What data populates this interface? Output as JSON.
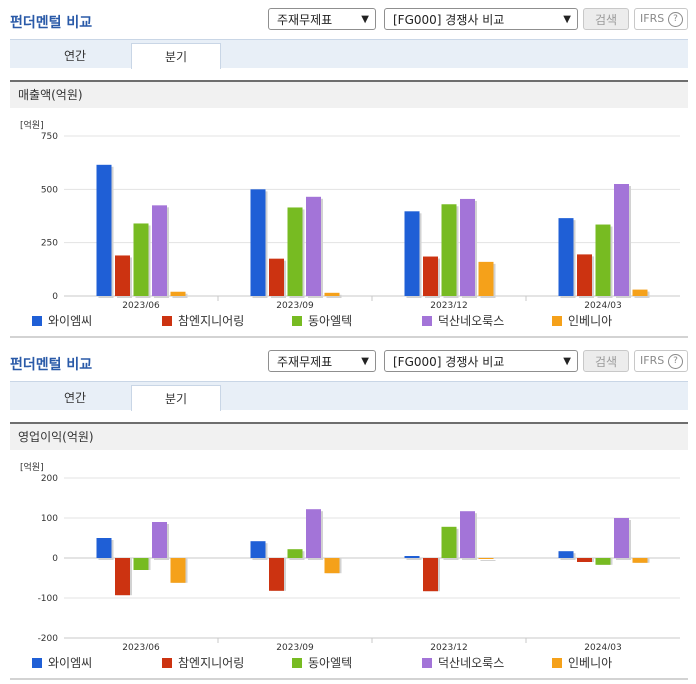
{
  "widgets": [
    {
      "title": "펀더멘털 비교",
      "select_type": "주재무제표",
      "select_compare": "[FG000] 경쟁사 비교",
      "search_label": "검색",
      "ifrs_label": "IFRS",
      "help_label": "?",
      "tabs": [
        "연간",
        "분기"
      ],
      "active_tab": "분기",
      "section_title": "매출액(억원)",
      "unit_label": "[억원]",
      "chart_data": {
        "type": "bar",
        "title": "매출액(억원)",
        "ylabel": "[억원]",
        "categories": [
          "2023/06",
          "2023/09",
          "2023/12",
          "2024/03"
        ],
        "ylim": [
          0,
          750
        ],
        "yticks": [
          0,
          250,
          500,
          750
        ],
        "grid": true,
        "legend": "bottom",
        "series": [
          {
            "name": "와이엠씨",
            "color": "#1f5fd6",
            "values": [
              615,
              500,
              397,
              365
            ]
          },
          {
            "name": "참엔지니어링",
            "color": "#cc3311",
            "values": [
              190,
              175,
              185,
              195
            ]
          },
          {
            "name": "동아엘텍",
            "color": "#77bb22",
            "values": [
              340,
              415,
              430,
              335
            ]
          },
          {
            "name": "덕산네오룩스",
            "color": "#a374d8",
            "values": [
              425,
              465,
              455,
              525
            ]
          },
          {
            "name": "인베니아",
            "color": "#f5a11a",
            "values": [
              20,
              15,
              160,
              30
            ]
          }
        ]
      }
    },
    {
      "title": "펀더멘털 비교",
      "select_type": "주재무제표",
      "select_compare": "[FG000] 경쟁사 비교",
      "search_label": "검색",
      "ifrs_label": "IFRS",
      "help_label": "?",
      "tabs": [
        "연간",
        "분기"
      ],
      "active_tab": "분기",
      "section_title": "영업이익(억원)",
      "unit_label": "[억원]",
      "chart_data": {
        "type": "bar",
        "title": "영업이익(억원)",
        "ylabel": "[억원]",
        "categories": [
          "2023/06",
          "2023/09",
          "2023/12",
          "2024/03"
        ],
        "ylim": [
          -200,
          200
        ],
        "yticks": [
          -200,
          -100,
          0,
          100,
          200
        ],
        "grid": true,
        "legend": "bottom",
        "series": [
          {
            "name": "와이엠씨",
            "color": "#1f5fd6",
            "values": [
              50,
              42,
              5,
              17
            ]
          },
          {
            "name": "참엔지니어링",
            "color": "#cc3311",
            "values": [
              -93,
              -82,
              -83,
              -10
            ]
          },
          {
            "name": "동아엘텍",
            "color": "#77bb22",
            "values": [
              -30,
              22,
              78,
              -17
            ]
          },
          {
            "name": "덕산네오룩스",
            "color": "#a374d8",
            "values": [
              90,
              122,
              117,
              100
            ]
          },
          {
            "name": "인베니아",
            "color": "#f5a11a",
            "values": [
              -62,
              -38,
              0,
              -12
            ]
          }
        ]
      }
    }
  ]
}
